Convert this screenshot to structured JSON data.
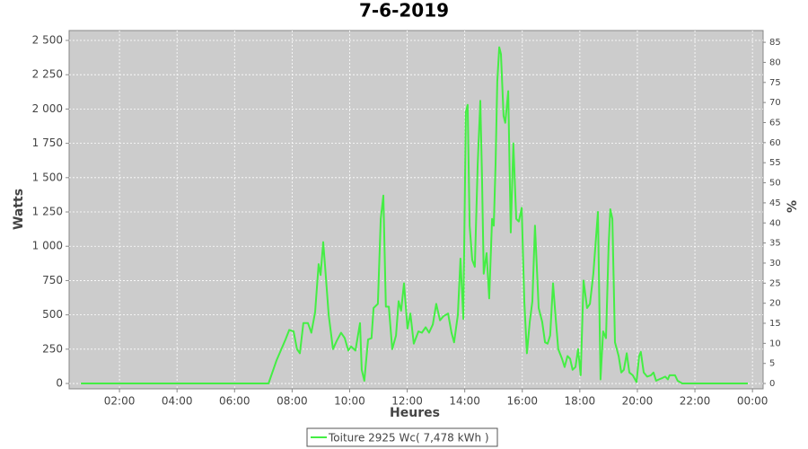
{
  "chart_data": {
    "type": "line",
    "title": "7-6-2019",
    "x_label": "Heures",
    "y_label": "Watts",
    "y2_label": "%",
    "x": [
      0.66,
      7.18,
      7.46,
      7.77,
      7.9,
      8.05,
      8.17,
      8.27,
      8.39,
      8.55,
      8.67,
      8.8,
      8.92,
      8.99,
      9.08,
      9.14,
      9.27,
      9.42,
      9.55,
      9.7,
      9.83,
      9.95,
      10.05,
      10.2,
      10.36,
      10.42,
      10.51,
      10.64,
      10.76,
      10.83,
      10.98,
      11.08,
      11.17,
      11.26,
      11.36,
      11.48,
      11.61,
      11.7,
      11.79,
      11.89,
      12.01,
      12.11,
      12.23,
      12.39,
      12.51,
      12.64,
      12.76,
      12.89,
      13.01,
      13.14,
      13.26,
      13.42,
      13.54,
      13.63,
      13.76,
      13.85,
      13.95,
      14.04,
      14.1,
      14.17,
      14.26,
      14.35,
      14.45,
      14.54,
      14.6,
      14.66,
      14.76,
      14.85,
      14.95,
      15.01,
      15.07,
      15.13,
      15.2,
      15.26,
      15.35,
      15.41,
      15.51,
      15.6,
      15.69,
      15.79,
      15.88,
      15.98,
      16.07,
      16.16,
      16.26,
      16.35,
      16.44,
      16.57,
      16.69,
      16.79,
      16.88,
      16.97,
      17.07,
      17.16,
      17.25,
      17.38,
      17.47,
      17.57,
      17.66,
      17.75,
      17.85,
      17.94,
      18.03,
      18.13,
      18.25,
      18.35,
      18.47,
      18.63,
      18.72,
      18.81,
      18.91,
      19.0,
      19.06,
      19.13,
      19.22,
      19.35,
      19.44,
      19.53,
      19.63,
      19.72,
      19.84,
      19.97,
      20.06,
      20.12,
      20.22,
      20.34,
      20.47,
      20.56,
      20.65,
      20.75,
      20.87,
      20.97,
      21.06,
      21.12,
      21.31,
      21.4,
      21.56,
      23.84
    ],
    "series": [
      {
        "name": "Toiture 2925 Wc( 7,478 kWh )",
        "color": "#44ee44",
        "values": [
          0,
          0,
          170,
          320,
          390,
          380,
          250,
          220,
          440,
          440,
          370,
          520,
          870,
          790,
          1030,
          870,
          500,
          250,
          310,
          370,
          330,
          240,
          270,
          240,
          440,
          100,
          20,
          320,
          330,
          550,
          580,
          1200,
          1370,
          560,
          560,
          250,
          350,
          600,
          530,
          730,
          400,
          510,
          290,
          380,
          370,
          410,
          370,
          430,
          580,
          460,
          490,
          510,
          370,
          300,
          500,
          910,
          470,
          1980,
          2030,
          1150,
          900,
          850,
          1600,
          2060,
          1500,
          800,
          950,
          620,
          1200,
          1150,
          1600,
          2200,
          2450,
          2400,
          1950,
          1900,
          2130,
          1100,
          1750,
          1200,
          1180,
          1280,
          600,
          220,
          450,
          600,
          1150,
          550,
          450,
          300,
          290,
          350,
          730,
          480,
          250,
          180,
          120,
          200,
          180,
          100,
          120,
          250,
          60,
          750,
          550,
          580,
          800,
          1250,
          30,
          380,
          330,
          1000,
          1270,
          1200,
          300,
          200,
          80,
          100,
          220,
          80,
          60,
          10,
          200,
          230,
          80,
          50,
          60,
          80,
          20,
          30,
          40,
          50,
          30,
          60,
          60,
          20,
          0,
          0
        ]
      }
    ],
    "xlim": [
      0.25,
      24.37
    ],
    "xticks": [
      {
        "value": 2,
        "label": "02:00"
      },
      {
        "value": 4,
        "label": "04:00"
      },
      {
        "value": 6,
        "label": "06:00"
      },
      {
        "value": 8,
        "label": "08:00"
      },
      {
        "value": 10,
        "label": "10:00"
      },
      {
        "value": 12,
        "label": "12:00"
      },
      {
        "value": 14,
        "label": "14:00"
      },
      {
        "value": 16,
        "label": "16:00"
      },
      {
        "value": 18,
        "label": "18:00"
      },
      {
        "value": 20,
        "label": "20:00"
      },
      {
        "value": 22,
        "label": "22:00"
      },
      {
        "value": 24,
        "label": "00:00"
      }
    ],
    "ylim": [
      -39,
      2572
    ],
    "yticks": [
      0,
      250,
      500,
      750,
      {
        "value": 1000,
        "label": "1 000"
      },
      {
        "value": 1250,
        "label": "1 250"
      },
      {
        "value": 1500,
        "label": "1 500"
      },
      {
        "value": 1750,
        "label": "1 750"
      },
      {
        "value": 2000,
        "label": "2 000"
      },
      {
        "value": 2250,
        "label": "2 250"
      },
      {
        "value": 2500,
        "label": "2 500"
      }
    ],
    "y2lim": [
      -1.33,
      87.93
    ],
    "y2ticks": [
      0,
      5,
      10,
      15,
      20,
      25,
      30,
      35,
      40,
      45,
      50,
      55,
      60,
      65,
      70,
      75,
      80,
      85
    ],
    "grid": true,
    "legend": "bottom"
  }
}
